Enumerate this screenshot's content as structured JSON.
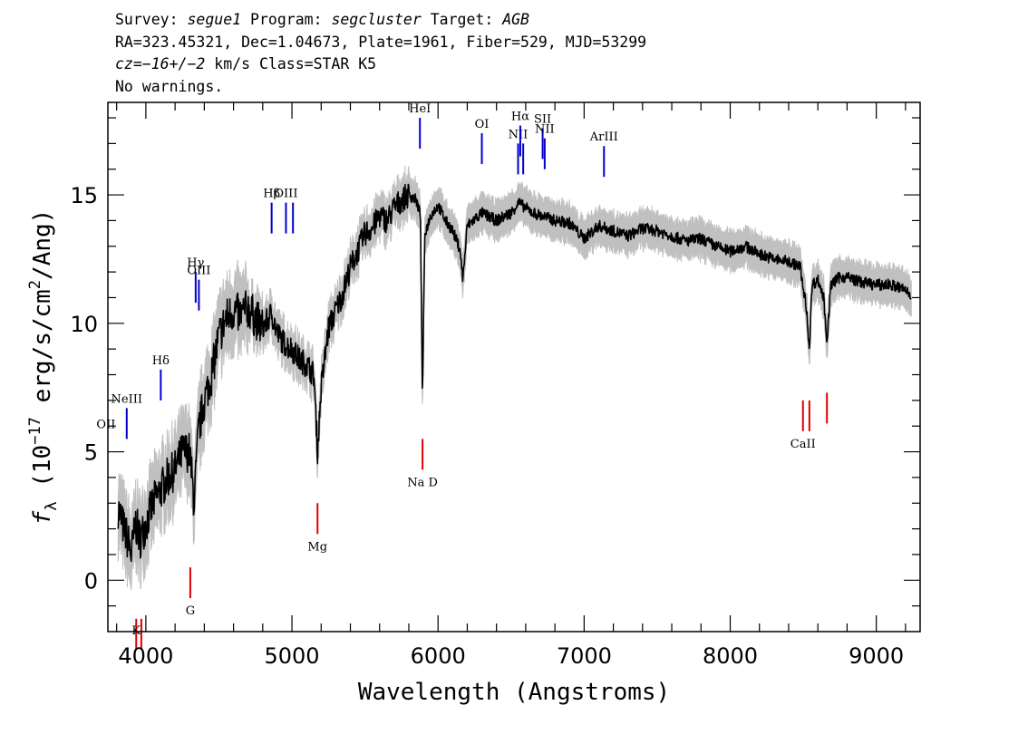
{
  "header": {
    "line1": {
      "survey_label": "Survey: ",
      "survey": "segue1",
      "program_label": " Program: ",
      "program": "segcluster",
      "target_label": " Target: ",
      "target": "AGB"
    },
    "line2": "RA=323.45321, Dec=1.04673, Plate=1961, Fiber=529, MJD=53299",
    "line3": {
      "cz_label": "cz",
      "cz_value": "=−16+/−2",
      "cz_unit": " km/s Class=STAR K5"
    },
    "line4": "No warnings."
  },
  "chart_data": {
    "type": "line",
    "xlabel": "Wavelength (Angstroms)",
    "ylabel": {
      "f": "f",
      "sub": "λ",
      "pre": " (10",
      "exp1": "−17",
      "mid": " erg/s/cm",
      "exp2": "2",
      "post": "/Ang)"
    },
    "xlim": [
      3740,
      9300
    ],
    "ylim": [
      -2.0,
      18.6
    ],
    "x_ticks": [
      4000,
      5000,
      6000,
      7000,
      8000,
      9000
    ],
    "x_tick_labels": [
      "4000",
      "5000",
      "6000",
      "7000",
      "8000",
      "9000"
    ],
    "y_ticks": [
      0,
      5,
      10,
      15
    ],
    "y_tick_labels": [
      "0",
      "5",
      "10",
      "15"
    ],
    "grid": false,
    "colors": {
      "flux": "#000000",
      "error": "#c0c0c0",
      "emission": "#0000cc",
      "absorption": "#dd0000"
    },
    "series": [
      {
        "name": "flux",
        "x": [
          3810,
          3850,
          3880,
          3900,
          3930,
          3960,
          4000,
          4050,
          4100,
          4150,
          4200,
          4250,
          4300,
          4330,
          4360,
          4400,
          4450,
          4500,
          4550,
          4600,
          4650,
          4700,
          4750,
          4800,
          4860,
          4900,
          4950,
          5000,
          5050,
          5100,
          5150,
          5175,
          5200,
          5250,
          5300,
          5350,
          5400,
          5450,
          5500,
          5550,
          5600,
          5650,
          5700,
          5750,
          5800,
          5850,
          5880,
          5893,
          5910,
          5950,
          6000,
          6050,
          6100,
          6150,
          6170,
          6200,
          6300,
          6400,
          6500,
          6550,
          6600,
          6650,
          6700,
          6800,
          6900,
          7000,
          7100,
          7200,
          7300,
          7400,
          7500,
          7600,
          7700,
          7800,
          7900,
          8000,
          8100,
          8200,
          8300,
          8400,
          8480,
          8500,
          8520,
          8542,
          8560,
          8600,
          8640,
          8662,
          8690,
          8750,
          8800,
          8900,
          9000,
          9100,
          9200,
          9240
        ],
        "y": [
          2.8,
          2.0,
          1.5,
          1.0,
          2.2,
          1.6,
          2.2,
          3.0,
          3.5,
          4.0,
          4.3,
          5.0,
          5.0,
          3.0,
          5.8,
          7.0,
          8.0,
          9.5,
          10.2,
          10.5,
          10.3,
          10.6,
          10.2,
          9.8,
          10.4,
          9.6,
          9.2,
          9.0,
          8.6,
          8.4,
          8.0,
          5.0,
          7.5,
          9.8,
          10.5,
          11.2,
          12.2,
          12.8,
          13.5,
          13.7,
          14.2,
          14.0,
          14.5,
          14.8,
          15.0,
          14.8,
          14.2,
          7.0,
          13.5,
          14.2,
          14.6,
          14.0,
          13.6,
          12.9,
          11.7,
          13.8,
          14.3,
          14.0,
          14.3,
          14.7,
          14.5,
          14.3,
          14.2,
          14.0,
          13.9,
          13.3,
          13.8,
          13.6,
          13.4,
          13.7,
          13.6,
          13.4,
          13.2,
          13.3,
          13.0,
          12.8,
          13.0,
          12.7,
          12.5,
          12.4,
          12.2,
          11.3,
          10.7,
          9.0,
          11.5,
          11.7,
          11.0,
          9.3,
          11.5,
          11.8,
          11.8,
          11.6,
          11.5,
          11.5,
          11.3,
          11.1
        ]
      }
    ],
    "emission_lines": [
      {
        "label": "OII",
        "x": 3727,
        "y": 4.5,
        "display": "OII"
      },
      {
        "label": "NeIII",
        "x": 3869,
        "y": 5.5,
        "display": "NeIII"
      },
      {
        "label": "Hδ",
        "x": 4102,
        "y": 7.0,
        "display": "Hδ"
      },
      {
        "label": "Hγ",
        "x": 4341,
        "y": 10.8,
        "display": "Hγ"
      },
      {
        "label": "OIII",
        "x": 4363,
        "y": 10.5,
        "display": "OIII"
      },
      {
        "label": "Hβ",
        "x": 4861,
        "y": 13.5,
        "display": "Hβ"
      },
      {
        "label": "OIII",
        "x": 4959,
        "y": 13.5,
        "display": "OIII"
      },
      {
        "label": "OIII",
        "x": 5007,
        "y": 13.5,
        "display": ""
      },
      {
        "label": "HeI",
        "x": 5876,
        "y": 16.8,
        "display": "HeI"
      },
      {
        "label": "OI",
        "x": 6300,
        "y": 16.2,
        "display": "OI"
      },
      {
        "label": "NII",
        "x": 6548,
        "y": 15.8,
        "display": "NII"
      },
      {
        "label": "Hα",
        "x": 6563,
        "y": 16.5,
        "display": "Hα"
      },
      {
        "label": "NII",
        "x": 6583,
        "y": 15.8,
        "display": ""
      },
      {
        "label": "SII",
        "x": 6716,
        "y": 16.4,
        "display": "SII"
      },
      {
        "label": "NII",
        "x": 6730,
        "y": 16.0,
        "display": "NII"
      },
      {
        "label": "ArIII",
        "x": 7136,
        "y": 15.7,
        "display": "ArIII"
      }
    ],
    "absorption_lines": [
      {
        "label": "K",
        "x": 3934,
        "y": -1.5,
        "display": "K"
      },
      {
        "label": "H",
        "x": 3969,
        "y": -1.5,
        "display": ""
      },
      {
        "label": "G",
        "x": 4304,
        "y": 0.5,
        "display": "G"
      },
      {
        "label": "Mg",
        "x": 5175,
        "y": 3.0,
        "display": "Mg"
      },
      {
        "label": "Na D",
        "x": 5894,
        "y": 5.5,
        "display": "Na D"
      },
      {
        "label": "CaII",
        "x": 8498,
        "y": 7.0,
        "display": "CaII"
      },
      {
        "label": "CaII",
        "x": 8542,
        "y": 7.0,
        "display": ""
      },
      {
        "label": "CaII",
        "x": 8662,
        "y": 7.3,
        "display": ""
      }
    ]
  }
}
